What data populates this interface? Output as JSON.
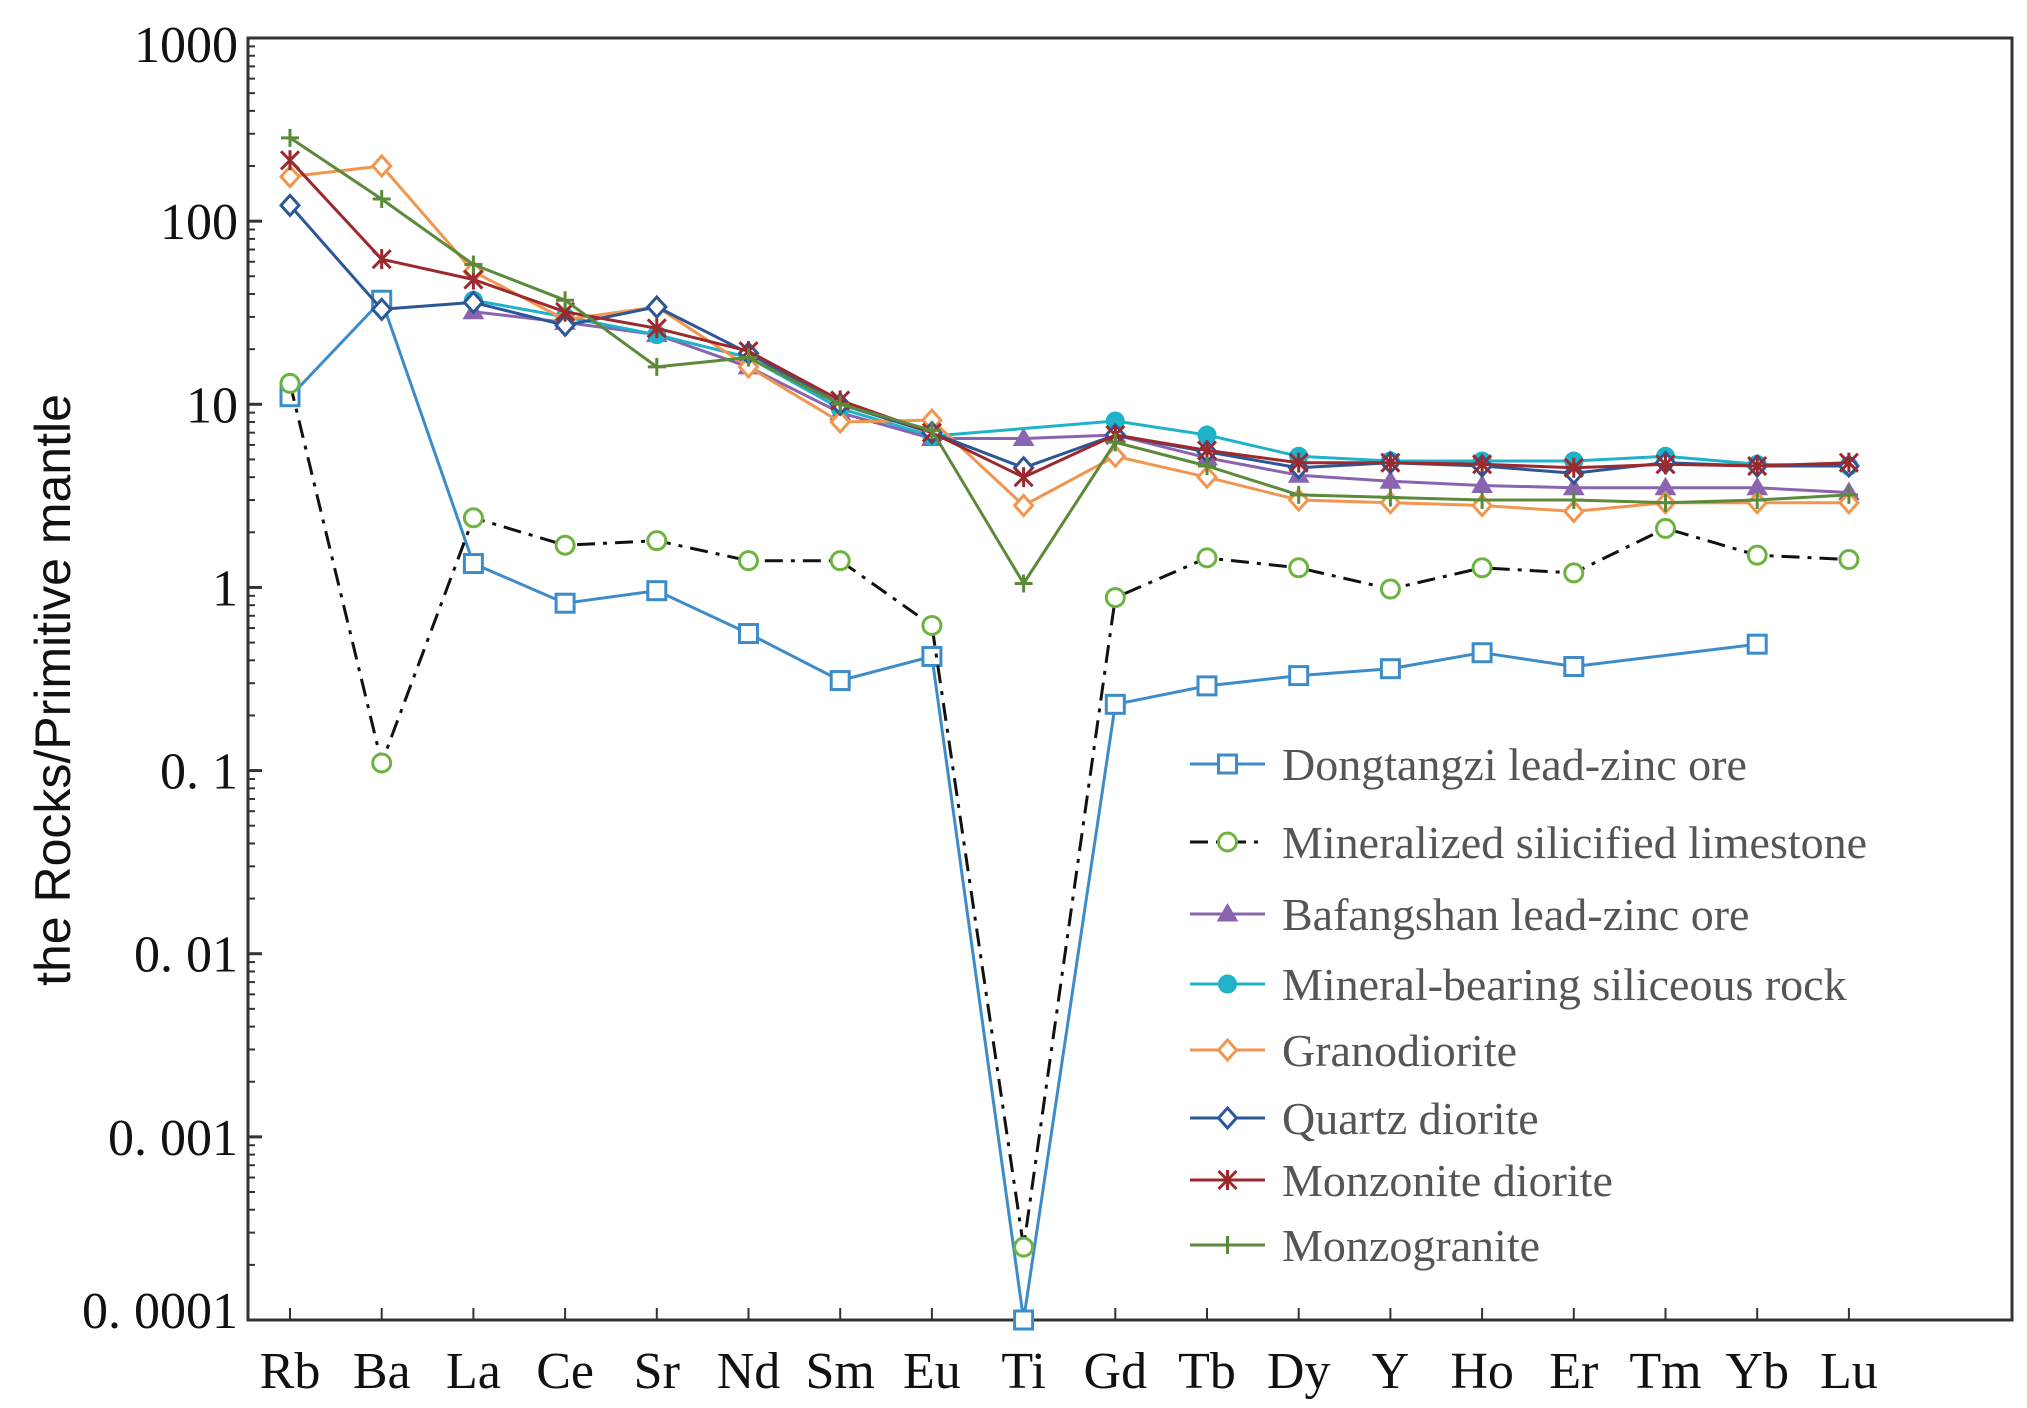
{
  "chart_data": {
    "type": "line",
    "title": "",
    "xlabel": "",
    "ylabel": "the Rocks/Primitive mantle",
    "yscale": "log",
    "ylim": [
      0.0001,
      1000
    ],
    "ytick_values": [
      0.0001,
      0.001,
      0.01,
      0.1,
      1,
      10,
      100,
      1000
    ],
    "ytick_labels": [
      "0. 0001",
      "0. 001",
      "0. 01",
      "0. 1",
      "1",
      "10",
      "100",
      "1000"
    ],
    "legend_position": "center-right",
    "categories": [
      "Rb",
      "Ba",
      "La",
      "Ce",
      "Sr",
      "Nd",
      "Sm",
      "Eu",
      "Ti",
      "Gd",
      "Tb",
      "Dy",
      "Y",
      "Ho",
      "Er",
      "Tm",
      "Yb",
      "Lu"
    ],
    "series": [
      {
        "name": "Dongtangzi lead-zinc ore",
        "color": "#3d8cc9",
        "marker": "square-open",
        "dash": "",
        "values": [
          11,
          37,
          1.35,
          0.82,
          0.96,
          0.56,
          0.31,
          0.42,
          0.0001,
          0.23,
          0.29,
          0.33,
          0.36,
          0.44,
          0.37,
          null,
          0.49,
          null
        ]
      },
      {
        "name": "Mineralized silicified limestone",
        "color": "#111111",
        "marker": "circle-open",
        "marker_color": "#6db33f",
        "dash": "18,8,4,8",
        "values": [
          13,
          0.11,
          2.4,
          1.7,
          1.8,
          1.4,
          1.4,
          0.62,
          0.00025,
          0.88,
          1.45,
          1.28,
          0.98,
          1.28,
          1.2,
          2.1,
          1.5,
          1.42
        ]
      },
      {
        "name": "Bafangshan lead-zinc ore",
        "color": "#8b64b0",
        "marker": "triangle-filled",
        "dash": "",
        "values": [
          null,
          null,
          32,
          28,
          24,
          16,
          9,
          6.5,
          6.5,
          6.8,
          5.1,
          4.1,
          3.8,
          3.6,
          3.5,
          3.5,
          3.5,
          3.3
        ]
      },
      {
        "name": "Mineral-bearing siliceous rock",
        "color": "#1fb2c8",
        "marker": "circle-filled",
        "dash": "",
        "values": [
          null,
          null,
          37,
          30,
          24,
          18,
          9.5,
          6.7,
          null,
          8.1,
          6.8,
          5.2,
          4.9,
          4.9,
          4.9,
          5.2,
          4.7,
          4.6
        ]
      },
      {
        "name": "Granodiorite",
        "color": "#f0964e",
        "marker": "diamond-open",
        "dash": "",
        "values": [
          175,
          200,
          53,
          29,
          34,
          16,
          8,
          8.2,
          2.8,
          5.2,
          4,
          3,
          2.9,
          2.8,
          2.6,
          2.9,
          2.9,
          2.9
        ]
      },
      {
        "name": "Quartz diorite",
        "color": "#2c5797",
        "marker": "diamond-open",
        "dash": "",
        "values": [
          122,
          33,
          36,
          27,
          34,
          19,
          10,
          7,
          4.5,
          6.8,
          5.5,
          4.5,
          4.8,
          4.6,
          4.2,
          4.8,
          4.6,
          4.6
        ]
      },
      {
        "name": "Monzonite diorite",
        "color": "#9b2a2e",
        "marker": "asterisk",
        "dash": "",
        "values": [
          215,
          62,
          48,
          32,
          26,
          19.5,
          10.5,
          7,
          4,
          6.8,
          5.6,
          4.8,
          4.8,
          4.7,
          4.5,
          4.7,
          4.6,
          4.8
        ]
      },
      {
        "name": "Monzogranite",
        "color": "#5b8a3a",
        "marker": "plus",
        "dash": "",
        "values": [
          285,
          132,
          58,
          37,
          16,
          18,
          10,
          7.2,
          1.05,
          6.2,
          4.6,
          3.2,
          3.1,
          3,
          3,
          2.9,
          3,
          3.2
        ]
      }
    ]
  }
}
